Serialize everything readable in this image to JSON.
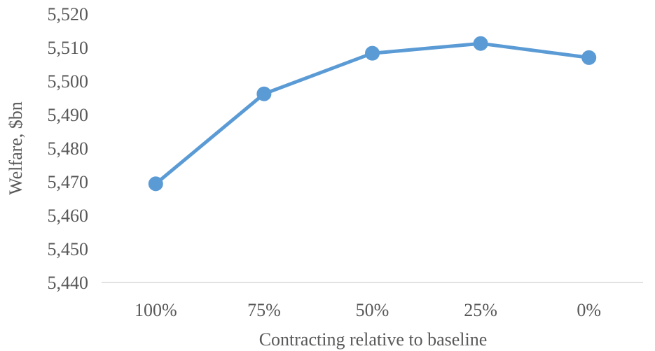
{
  "chart_data": {
    "type": "line",
    "title": "",
    "xlabel": "Contracting relative to baseline",
    "ylabel": "Welfare, $bn",
    "categories": [
      "100%",
      "75%",
      "50%",
      "25%",
      "0%"
    ],
    "y_ticks": [
      "5,440",
      "5,450",
      "5,460",
      "5,470",
      "5,480",
      "5,490",
      "5,500",
      "5,510",
      "5,520"
    ],
    "ylim": [
      5440,
      5520
    ],
    "grid": false,
    "legend": "none",
    "series": [
      {
        "values": [
          5469.4,
          5496.2,
          5508.3,
          5511.2,
          5507.0
        ],
        "color": "#5b9bd5"
      }
    ]
  }
}
